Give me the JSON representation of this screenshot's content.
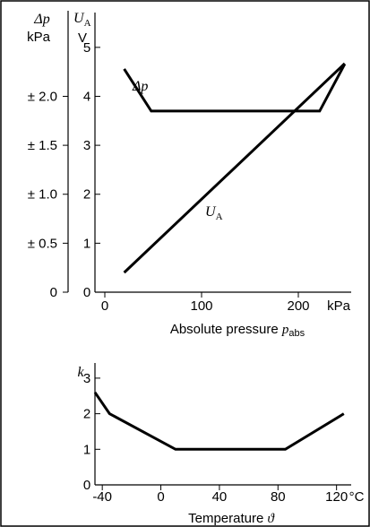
{
  "chart_data": [
    {
      "type": "line",
      "ylabel_left": {
        "symbol": "Δp",
        "unit": "kPa"
      },
      "ylabel_right": {
        "symbol": "U",
        "subscript": "A",
        "unit": "V"
      },
      "xlabel": {
        "text": "Absolute pressure ",
        "symbol": "p",
        "subscript": "abs"
      },
      "x_unit_label": "kPa",
      "xlim": [
        0,
        250
      ],
      "ylim_right": [
        0,
        5.4
      ],
      "xticks": [
        0,
        100,
        200
      ],
      "yticks_left": [
        {
          "label": "± 2.0",
          "at": 4
        },
        {
          "label": "± 1.5",
          "at": 3
        },
        {
          "label": "± 1.0",
          "at": 2
        },
        {
          "label": "± 0.5",
          "at": 1
        },
        {
          "label": "0",
          "at": 0
        }
      ],
      "yticks_right": [
        0,
        1,
        2,
        3,
        4,
        5
      ],
      "series": [
        {
          "name": "Δp",
          "unit": "kPa",
          "x": [
            20,
            48,
            222,
            248
          ],
          "y": [
            2.28,
            1.85,
            1.85,
            2.33
          ]
        },
        {
          "name": "U",
          "subscript": "A",
          "unit": "V",
          "x": [
            20,
            248
          ],
          "y": [
            0.4,
            4.67
          ]
        }
      ]
    },
    {
      "type": "line",
      "ylabel": {
        "symbol": "k"
      },
      "xlabel": {
        "text": "Temperature ",
        "symbol": "ϑ"
      },
      "x_unit_label": "°C",
      "xlim": [
        -45,
        130
      ],
      "ylim": [
        0,
        3.3
      ],
      "xticks": [
        -40,
        0,
        40,
        80,
        120
      ],
      "yticks": [
        0,
        1,
        2,
        3
      ],
      "series": [
        {
          "name": "k",
          "x": [
            -45,
            -35,
            10,
            85,
            125
          ],
          "y": [
            2.6,
            2.0,
            1.0,
            1.0,
            2.0
          ]
        }
      ]
    }
  ]
}
